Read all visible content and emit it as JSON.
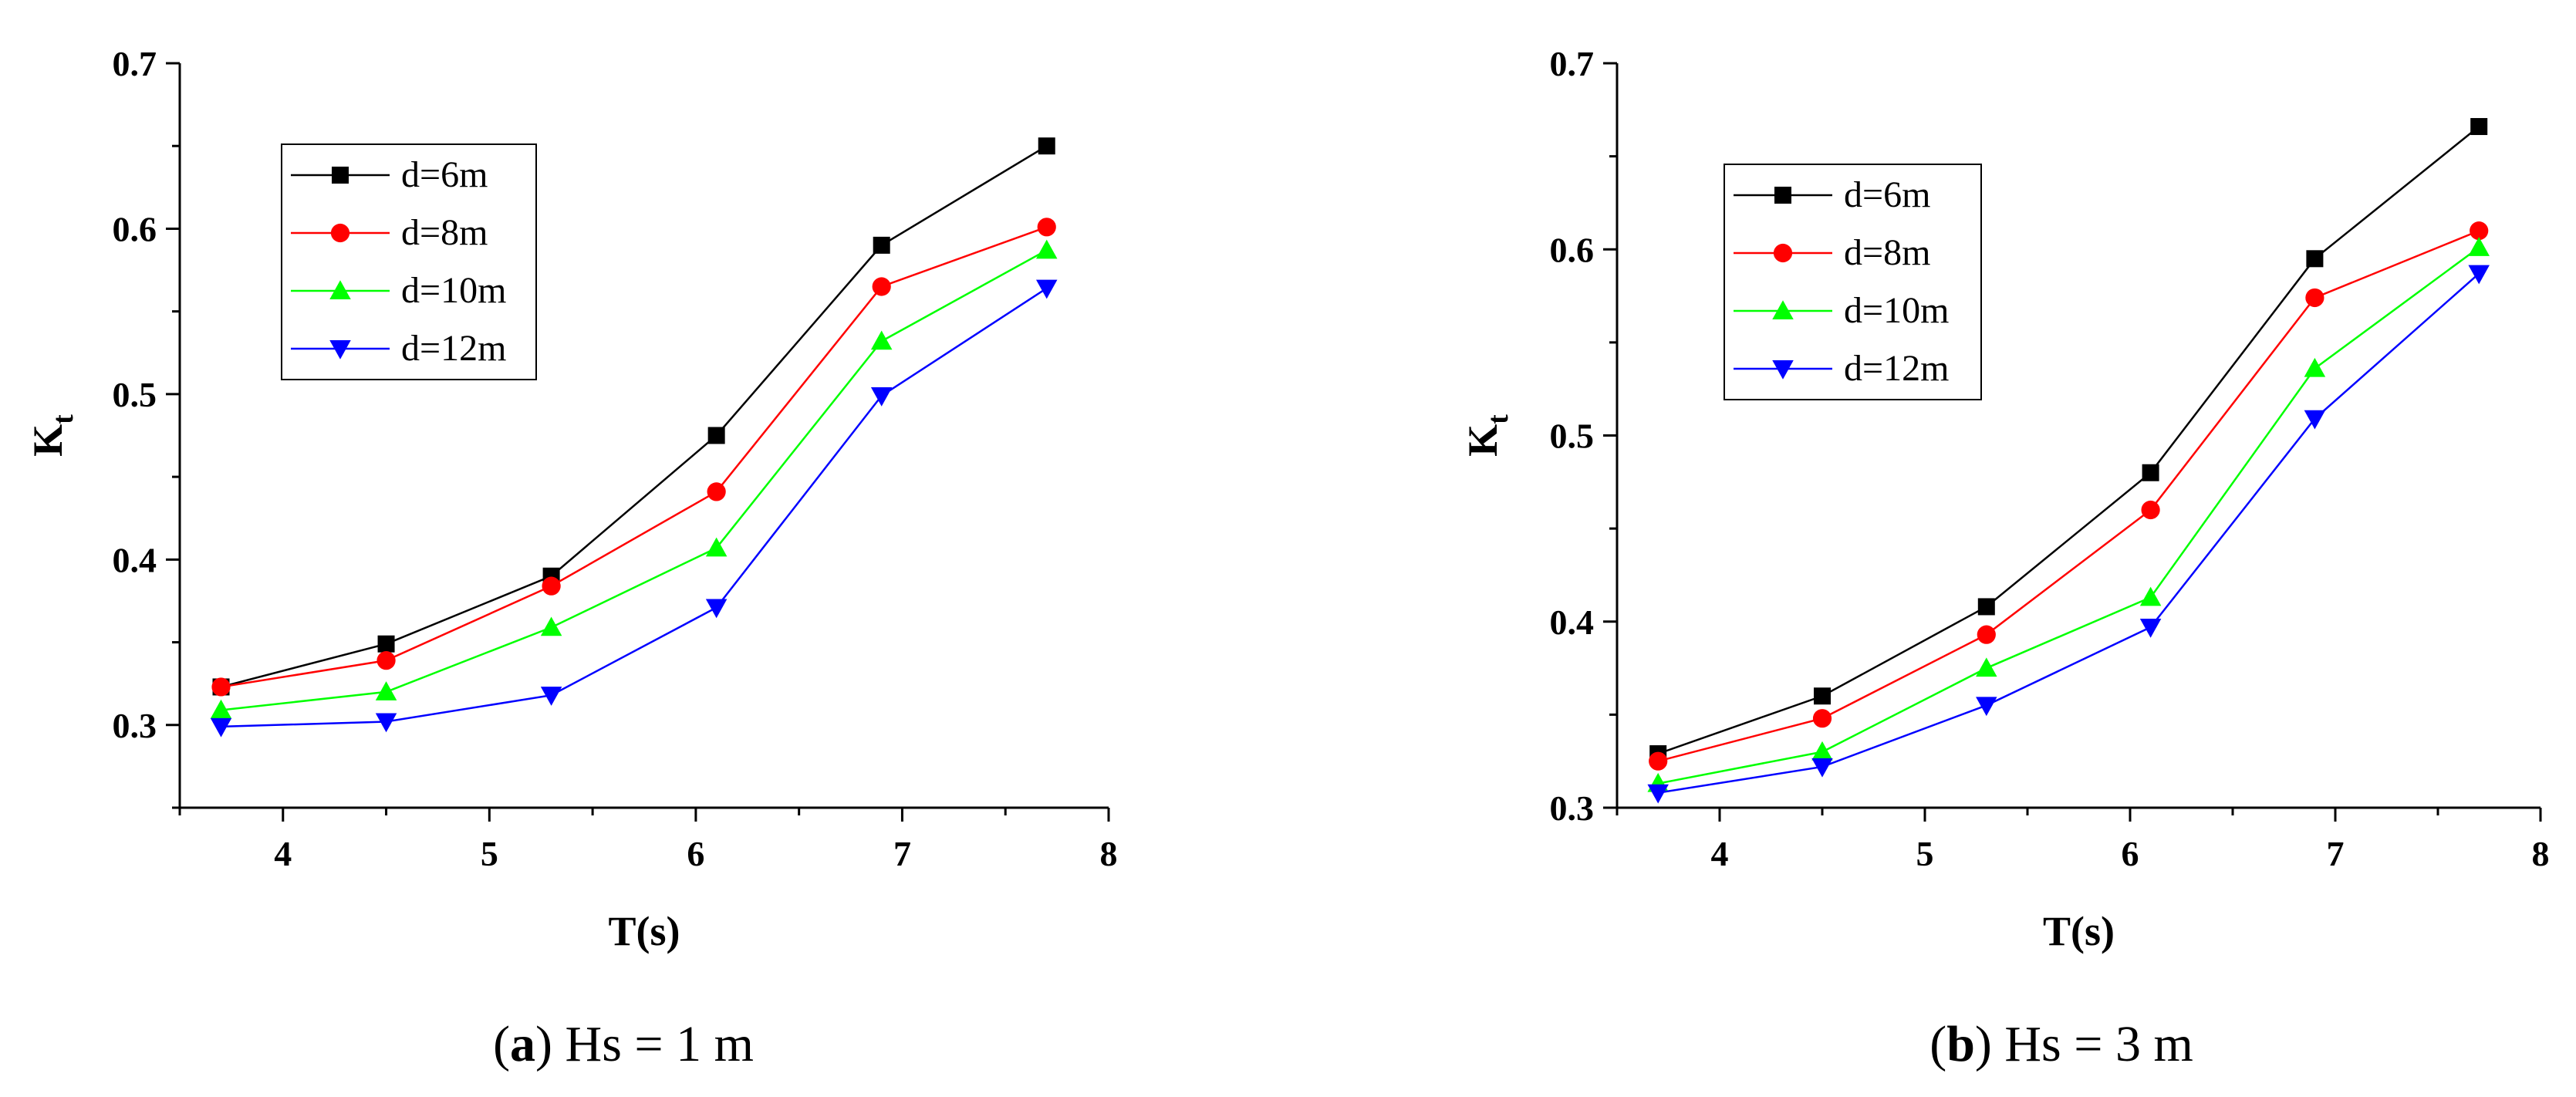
{
  "chart_data": [
    {
      "type": "line",
      "caption": {
        "open": "(",
        "letter": "a",
        "text": ") Hs = 1 m"
      },
      "xlabel": "T(s)",
      "ylabel_main": "K",
      "ylabel_sub": "t",
      "xlim": [
        3.5,
        8
      ],
      "ylim": [
        0.25,
        0.7
      ],
      "xticks": [
        4,
        5,
        6,
        7,
        8
      ],
      "yticks": [
        0.3,
        0.4,
        0.5,
        0.6,
        0.7
      ],
      "x": [
        3.7,
        4.5,
        5.3,
        6.1,
        6.9,
        7.7
      ],
      "legend_position": "top-left",
      "series": [
        {
          "name": "d=6m",
          "color": "#000000",
          "marker": "square",
          "values": [
            0.323,
            0.349,
            0.39,
            0.475,
            0.59,
            0.65
          ]
        },
        {
          "name": "d=8m",
          "color": "#ff0000",
          "marker": "circle",
          "values": [
            0.323,
            0.339,
            0.384,
            0.441,
            0.565,
            0.601
          ]
        },
        {
          "name": "d=10m",
          "color": "#00ff00",
          "marker": "triangle",
          "values": [
            0.309,
            0.32,
            0.359,
            0.407,
            0.532,
            0.587
          ]
        },
        {
          "name": "d=12m",
          "color": "#0000ff",
          "marker": "tri-down",
          "values": [
            0.299,
            0.302,
            0.318,
            0.371,
            0.499,
            0.564
          ]
        }
      ]
    },
    {
      "type": "line",
      "caption": {
        "open": "(",
        "letter": "b",
        "text": ") Hs = 3 m"
      },
      "xlabel": "T(s)",
      "ylabel_main": "K",
      "ylabel_sub": "t",
      "xlim": [
        3.5,
        8
      ],
      "ylim": [
        0.3,
        0.7
      ],
      "xticks": [
        4,
        5,
        6,
        7,
        8
      ],
      "yticks": [
        0.3,
        0.4,
        0.5,
        0.6,
        0.7
      ],
      "x": [
        3.7,
        4.5,
        5.3,
        6.1,
        6.9,
        7.7
      ],
      "legend_position": "top-left",
      "series": [
        {
          "name": "d=6m",
          "color": "#000000",
          "marker": "square",
          "values": [
            0.329,
            0.36,
            0.408,
            0.48,
            0.595,
            0.666
          ]
        },
        {
          "name": "d=8m",
          "color": "#ff0000",
          "marker": "circle",
          "values": [
            0.325,
            0.348,
            0.393,
            0.46,
            0.574,
            0.61
          ]
        },
        {
          "name": "d=10m",
          "color": "#00ff00",
          "marker": "triangle",
          "values": [
            0.313,
            0.33,
            0.375,
            0.413,
            0.536,
            0.601
          ]
        },
        {
          "name": "d=12m",
          "color": "#0000ff",
          "marker": "tri-down",
          "values": [
            0.308,
            0.322,
            0.355,
            0.397,
            0.509,
            0.587
          ]
        }
      ]
    }
  ]
}
